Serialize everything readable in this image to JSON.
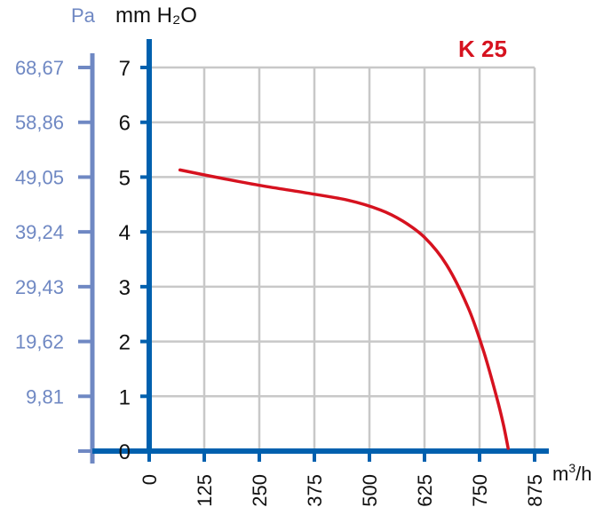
{
  "chart_data": {
    "type": "line",
    "title": "",
    "series_label": "K 25",
    "x_unit_base": "m",
    "x_unit_exp": "3",
    "x_unit_tail": "/h",
    "y_unit": "mm H₂O",
    "y2_unit": "Pa",
    "x_ticks": [
      0,
      125,
      250,
      375,
      500,
      625,
      750,
      875
    ],
    "x_tick_labels": [
      "0",
      "125",
      "250",
      "375",
      "500",
      "625",
      "750",
      "875"
    ],
    "y_ticks": [
      0,
      1,
      2,
      3,
      4,
      5,
      6,
      7
    ],
    "y_tick_labels": [
      "0",
      "1",
      "2",
      "3",
      "4",
      "5",
      "6",
      "7"
    ],
    "y2_tick_labels": [
      "9,81",
      "19,62",
      "29,43",
      "39,24",
      "49,05",
      "58,86",
      "68,67"
    ],
    "y2_tick_values": [
      1,
      2,
      3,
      4,
      5,
      6,
      7
    ],
    "xlim": [
      0,
      875
    ],
    "ylim": [
      0,
      7
    ],
    "grid": true,
    "colors": {
      "axis": "#0060ae",
      "pa_axis": "#6f88c3",
      "grid": "#c8c8c8",
      "series": "#d6121f"
    },
    "series": [
      {
        "name": "K 25",
        "x": [
          70,
          150,
          250,
          350,
          450,
          525,
          575,
          625,
          675,
          725,
          760,
          790,
          805,
          815
        ],
        "y": [
          5.13,
          5.0,
          4.85,
          4.72,
          4.58,
          4.4,
          4.2,
          3.9,
          3.4,
          2.6,
          1.8,
          0.95,
          0.45,
          0.05
        ]
      }
    ]
  }
}
